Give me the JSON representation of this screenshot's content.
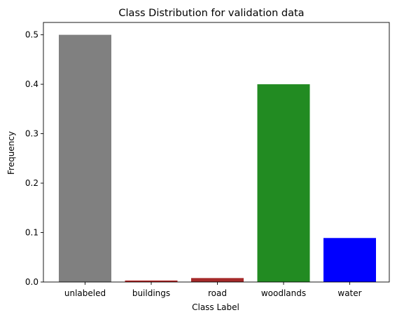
{
  "chart_data": {
    "type": "bar",
    "title": "Class Distribution for validation data",
    "xlabel": "Class Label",
    "ylabel": "Frequency",
    "categories": [
      "unlabeled",
      "buildings",
      "road",
      "woodlands",
      "water"
    ],
    "values": [
      0.5,
      0.003,
      0.008,
      0.4,
      0.089
    ],
    "colors": [
      "#808080",
      "#b22222",
      "#a52a2a",
      "#228b22",
      "#0000ff"
    ],
    "ylim": [
      0,
      0.525
    ],
    "yticks": [
      0.0,
      0.1,
      0.2,
      0.3,
      0.4,
      0.5
    ],
    "ytick_labels": [
      "0.0",
      "0.1",
      "0.2",
      "0.3",
      "0.4",
      "0.5"
    ],
    "grid": false,
    "legend": false
  }
}
